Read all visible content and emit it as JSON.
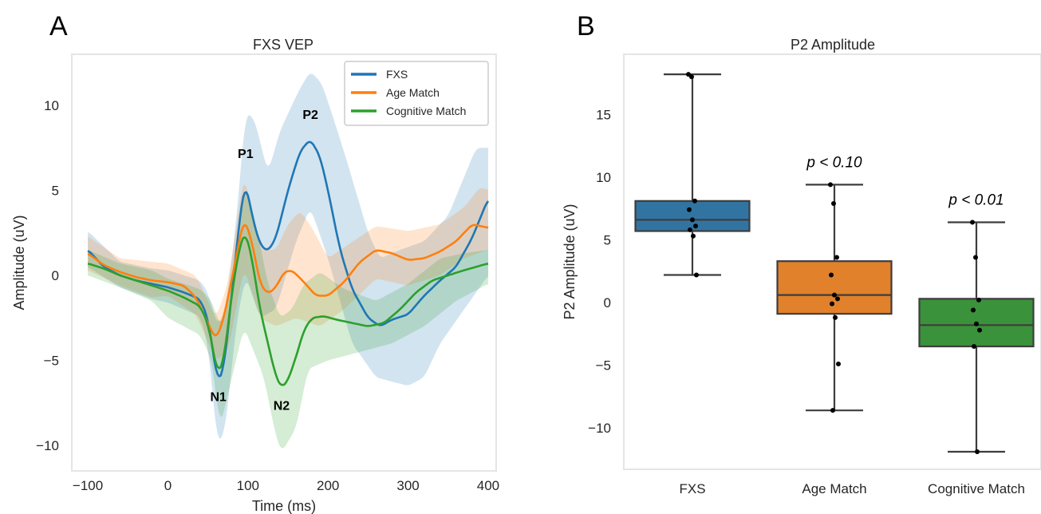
{
  "chart_data": [
    {
      "panel": "A",
      "type": "line",
      "title": "FXS VEP",
      "xlabel": "Time (ms)",
      "ylabel": "Amplitude (uV)",
      "xlim": [
        -120,
        410
      ],
      "ylim": [
        -11.5,
        13
      ],
      "xticks": [
        -100,
        0,
        100,
        200,
        300,
        400
      ],
      "yticks": [
        -10,
        -5,
        0,
        5,
        10
      ],
      "grid": false,
      "legend": "top-right",
      "series": [
        {
          "name": "FXS",
          "color": "#1f77b4",
          "points": [
            [
              -100,
              1.5
            ],
            [
              -80,
              0.5
            ],
            [
              -60,
              0
            ],
            [
              -40,
              -0.3
            ],
            [
              -20,
              -0.5
            ],
            [
              0,
              -0.7
            ],
            [
              20,
              -1.0
            ],
            [
              40,
              -1.4
            ],
            [
              50,
              -2.5
            ],
            [
              62,
              -6.3
            ],
            [
              70,
              -5.5
            ],
            [
              80,
              -1.0
            ],
            [
              90,
              3.5
            ],
            [
              97,
              5.6
            ],
            [
              105,
              3.5
            ],
            [
              115,
              1.8
            ],
            [
              125,
              1.4
            ],
            [
              135,
              2.2
            ],
            [
              150,
              5.0
            ],
            [
              165,
              7.3
            ],
            [
              178,
              8.0
            ],
            [
              190,
              7.0
            ],
            [
              200,
              5.0
            ],
            [
              215,
              1.5
            ],
            [
              230,
              -0.8
            ],
            [
              250,
              -2.5
            ],
            [
              265,
              -3.0
            ],
            [
              280,
              -2.6
            ],
            [
              300,
              -2.3
            ],
            [
              320,
              -1.2
            ],
            [
              340,
              -0.3
            ],
            [
              360,
              0.5
            ],
            [
              380,
              2.2
            ],
            [
              400,
              4.5
            ]
          ],
          "band_lower": [
            [
              -100,
              0.5
            ],
            [
              -60,
              -0.7
            ],
            [
              -20,
              -1.4
            ],
            [
              0,
              -1.6
            ],
            [
              40,
              -2.4
            ],
            [
              50,
              -4.0
            ],
            [
              62,
              -10.0
            ],
            [
              72,
              -9.0
            ],
            [
              85,
              -3.0
            ],
            [
              97,
              0.0
            ],
            [
              115,
              -2.5
            ],
            [
              135,
              -2.0
            ],
            [
              160,
              2.0
            ],
            [
              178,
              4.0
            ],
            [
              200,
              1.0
            ],
            [
              230,
              -4.0
            ],
            [
              260,
              -6.0
            ],
            [
              300,
              -6.5
            ],
            [
              320,
              -6.0
            ],
            [
              340,
              -4.0
            ],
            [
              370,
              -2.0
            ],
            [
              400,
              0.0
            ]
          ],
          "band_upper": [
            [
              -100,
              2.6
            ],
            [
              -60,
              0.8
            ],
            [
              -20,
              0.4
            ],
            [
              0,
              0.3
            ],
            [
              40,
              -0.3
            ],
            [
              50,
              -1.0
            ],
            [
              62,
              -3.0
            ],
            [
              72,
              -2.0
            ],
            [
              85,
              3.0
            ],
            [
              97,
              9.6
            ],
            [
              108,
              9.2
            ],
            [
              125,
              6.0
            ],
            [
              140,
              8.5
            ],
            [
              165,
              11.0
            ],
            [
              178,
              12.0
            ],
            [
              192,
              11.3
            ],
            [
              205,
              9.5
            ],
            [
              225,
              6.5
            ],
            [
              250,
              2.5
            ],
            [
              265,
              1.0
            ],
            [
              290,
              1.5
            ],
            [
              320,
              2.0
            ],
            [
              350,
              3.5
            ],
            [
              385,
              7.5
            ],
            [
              400,
              7.5
            ]
          ]
        },
        {
          "name": "Age Match",
          "color": "#ff7f0e",
          "points": [
            [
              -100,
              1.3
            ],
            [
              -80,
              0.6
            ],
            [
              -60,
              0.2
            ],
            [
              -40,
              -0.1
            ],
            [
              -20,
              -0.3
            ],
            [
              0,
              -0.4
            ],
            [
              20,
              -0.6
            ],
            [
              35,
              -1.3
            ],
            [
              48,
              -2.6
            ],
            [
              60,
              -3.8
            ],
            [
              70,
              -2.5
            ],
            [
              85,
              1.0
            ],
            [
              95,
              3.4
            ],
            [
              105,
              2.0
            ],
            [
              115,
              -0.5
            ],
            [
              125,
              -1.1
            ],
            [
              135,
              -0.7
            ],
            [
              145,
              0.2
            ],
            [
              155,
              0.3
            ],
            [
              170,
              -0.4
            ],
            [
              185,
              -1.2
            ],
            [
              200,
              -1.2
            ],
            [
              220,
              -0.4
            ],
            [
              240,
              0.8
            ],
            [
              260,
              1.5
            ],
            [
              280,
              1.3
            ],
            [
              300,
              0.9
            ],
            [
              320,
              1.0
            ],
            [
              340,
              1.4
            ],
            [
              360,
              2.0
            ],
            [
              380,
              3.0
            ],
            [
              400,
              2.8
            ]
          ],
          "band_lower": [
            [
              -100,
              0.3
            ],
            [
              -60,
              -0.6
            ],
            [
              -20,
              -1.3
            ],
            [
              0,
              -1.2
            ],
            [
              35,
              -2.3
            ],
            [
              60,
              -5.0
            ],
            [
              75,
              -4.5
            ],
            [
              95,
              0.5
            ],
            [
              115,
              -2.5
            ],
            [
              135,
              -3.0
            ],
            [
              160,
              -2.5
            ],
            [
              190,
              -3.0
            ],
            [
              220,
              -2.0
            ],
            [
              260,
              -0.2
            ],
            [
              300,
              -0.6
            ],
            [
              340,
              0.0
            ],
            [
              370,
              1.0
            ],
            [
              400,
              1.5
            ]
          ],
          "band_upper": [
            [
              -100,
              2.3
            ],
            [
              -60,
              1.0
            ],
            [
              -20,
              0.8
            ],
            [
              0,
              0.7
            ],
            [
              35,
              0.0
            ],
            [
              60,
              -2.5
            ],
            [
              75,
              -0.5
            ],
            [
              95,
              6.0
            ],
            [
              115,
              1.5
            ],
            [
              135,
              1.5
            ],
            [
              150,
              3.0
            ],
            [
              165,
              3.8
            ],
            [
              180,
              2.8
            ],
            [
              200,
              1.0
            ],
            [
              225,
              1.8
            ],
            [
              260,
              2.9
            ],
            [
              300,
              2.6
            ],
            [
              340,
              3.0
            ],
            [
              370,
              4.0
            ],
            [
              390,
              5.2
            ],
            [
              400,
              5.0
            ]
          ]
        },
        {
          "name": "Cognitive Match",
          "color": "#2ca02c",
          "points": [
            [
              -100,
              0.7
            ],
            [
              -80,
              0.4
            ],
            [
              -60,
              0
            ],
            [
              -40,
              -0.3
            ],
            [
              -20,
              -0.6
            ],
            [
              0,
              -0.9
            ],
            [
              20,
              -1.3
            ],
            [
              40,
              -1.8
            ],
            [
              50,
              -2.8
            ],
            [
              62,
              -5.8
            ],
            [
              70,
              -5.0
            ],
            [
              80,
              -1.0
            ],
            [
              90,
              1.8
            ],
            [
              97,
              2.6
            ],
            [
              105,
              1.0
            ],
            [
              115,
              -2.0
            ],
            [
              125,
              -4.0
            ],
            [
              135,
              -6.0
            ],
            [
              142,
              -6.6
            ],
            [
              150,
              -6.2
            ],
            [
              160,
              -4.8
            ],
            [
              170,
              -3.2
            ],
            [
              180,
              -2.5
            ],
            [
              195,
              -2.4
            ],
            [
              210,
              -2.6
            ],
            [
              230,
              -2.8
            ],
            [
              250,
              -3.0
            ],
            [
              270,
              -2.8
            ],
            [
              290,
              -2.0
            ],
            [
              310,
              -1.0
            ],
            [
              330,
              -0.3
            ],
            [
              350,
              0
            ],
            [
              370,
              0.3
            ],
            [
              400,
              0.7
            ]
          ],
          "band_lower": [
            [
              -100,
              0.0
            ],
            [
              -60,
              -0.7
            ],
            [
              -20,
              -1.5
            ],
            [
              0,
              -2.5
            ],
            [
              20,
              -3.0
            ],
            [
              40,
              -3.5
            ],
            [
              55,
              -5.0
            ],
            [
              65,
              -9.0
            ],
            [
              75,
              -7.0
            ],
            [
              95,
              -3.0
            ],
            [
              120,
              -6.0
            ],
            [
              135,
              -9.5
            ],
            [
              142,
              -10.4
            ],
            [
              160,
              -9.0
            ],
            [
              175,
              -5.5
            ],
            [
              200,
              -5.0
            ],
            [
              240,
              -4.5
            ],
            [
              280,
              -4.0
            ],
            [
              320,
              -3.0
            ],
            [
              360,
              -1.5
            ],
            [
              400,
              -0.5
            ]
          ],
          "band_upper": [
            [
              -100,
              1.5
            ],
            [
              -60,
              0.7
            ],
            [
              -20,
              0.3
            ],
            [
              0,
              -0.2
            ],
            [
              20,
              -0.5
            ],
            [
              40,
              -0.8
            ],
            [
              55,
              -1.5
            ],
            [
              65,
              -3.0
            ],
            [
              75,
              -2.0
            ],
            [
              85,
              2.0
            ],
            [
              97,
              5.5
            ],
            [
              110,
              3.0
            ],
            [
              125,
              -0.5
            ],
            [
              140,
              -2.5
            ],
            [
              155,
              -2.0
            ],
            [
              170,
              -0.5
            ],
            [
              190,
              0.2
            ],
            [
              220,
              -0.8
            ],
            [
              260,
              -1.5
            ],
            [
              300,
              -0.5
            ],
            [
              340,
              1.0
            ],
            [
              370,
              1.3
            ],
            [
              400,
              1.5
            ]
          ]
        }
      ],
      "annotations": [
        {
          "text": "P1",
          "x": 97,
          "y": 6.9
        },
        {
          "text": "P2",
          "x": 178,
          "y": 9.2
        },
        {
          "text": "N1",
          "x": 63,
          "y": -7.4
        },
        {
          "text": "N2",
          "x": 142,
          "y": -7.9
        }
      ]
    },
    {
      "panel": "B",
      "type": "box",
      "title": "P2 Amplitude",
      "xlabel": "",
      "ylabel": "P2 Amplitude (uV)",
      "ylim": [
        -13.3,
        19.8
      ],
      "yticks": [
        -10,
        -5,
        0,
        5,
        10,
        15
      ],
      "grid": false,
      "categories": [
        "FXS",
        "Age Match",
        "Cognitive Match"
      ],
      "boxes": [
        {
          "category": "FXS",
          "color": "#3274a1",
          "whisker_low": 2.2,
          "q1": 5.7,
          "median": 6.6,
          "q3": 8.1,
          "whisker_high": 18.2,
          "points": [
            18.2,
            18.0,
            8.1,
            7.4,
            6.6,
            6.1,
            5.8,
            5.3,
            2.2
          ]
        },
        {
          "category": "Age Match",
          "color": "#e1812c",
          "whisker_low": -8.6,
          "q1": -0.9,
          "median": 0.6,
          "q3": 3.3,
          "whisker_high": 9.4,
          "points": [
            9.4,
            7.9,
            3.6,
            2.2,
            0.6,
            0.3,
            -0.1,
            -1.2,
            -4.9,
            -8.6
          ]
        },
        {
          "category": "Cognitive Match",
          "color": "#3a923a",
          "whisker_low": -11.9,
          "q1": -3.5,
          "median": -1.8,
          "q3": 0.3,
          "whisker_high": 6.4,
          "points": [
            6.4,
            3.6,
            0.2,
            -0.6,
            -1.7,
            -2.2,
            -3.5,
            -11.9
          ]
        }
      ],
      "annotations": [
        {
          "text": "p < 0.10",
          "category": "Age Match",
          "y": 10.8
        },
        {
          "text": "p < 0.01",
          "category": "Cognitive Match",
          "y": 7.8
        }
      ]
    }
  ],
  "labels": {
    "panel_a": "A",
    "panel_b": "B"
  }
}
